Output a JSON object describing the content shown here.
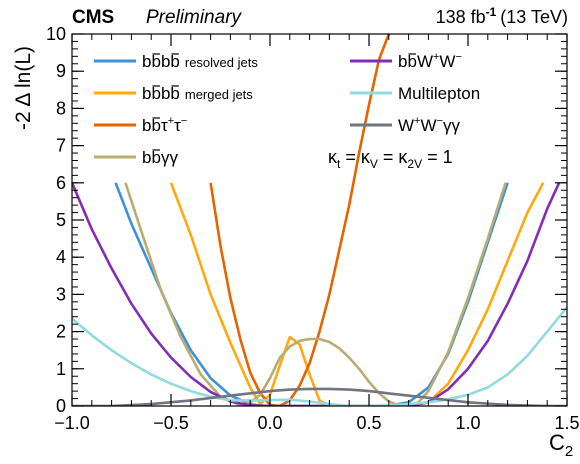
{
  "header": {
    "experiment": "CMS",
    "status": "Preliminary",
    "lumi_value": "138 fb",
    "lumi_exp": "-1",
    "energy": "(13 TeV)"
  },
  "axes": {
    "xlabel_main": "C",
    "xlabel_sub": "2",
    "ylabel": "-2 Δ ln(L)"
  },
  "annotation": {
    "kappa": "κ",
    "t": "t",
    "v": "V",
    "twov": "2V",
    "eq": " = ",
    "one": " = 1"
  },
  "legend": {
    "resolved_suffix": "resolved jets",
    "merged_suffix": "merged jets",
    "multilepton": "Multilepton"
  },
  "chart_data": {
    "type": "line",
    "xlim": [
      -1.0,
      1.5
    ],
    "ylim": [
      0,
      10
    ],
    "x_ticks": [
      -1.0,
      -0.5,
      0.0,
      0.5,
      1.0,
      1.5
    ],
    "x_tick_labels": [
      "−1.0",
      "−0.5",
      "0.0",
      "0.5",
      "1.0",
      "1.5"
    ],
    "y_ticks": [
      0,
      1,
      2,
      3,
      4,
      5,
      6,
      7,
      8,
      9,
      10
    ],
    "y_tick_labels": [
      "0",
      "1",
      "2",
      "3",
      "4",
      "5",
      "6",
      "7",
      "8",
      "9",
      "10"
    ],
    "grid": false,
    "legend_position": "top",
    "series": [
      {
        "color": "#3f90da",
        "x": [
          -0.78,
          -0.7,
          -0.6,
          -0.5,
          -0.4,
          -0.3,
          -0.2,
          -0.1,
          -0.05,
          0.0,
          0.05,
          0.1,
          0.2,
          0.3,
          0.4,
          0.5,
          0.6,
          0.7,
          0.8,
          0.9,
          1.0,
          1.1,
          1.2
        ],
        "y": [
          6.0,
          4.9,
          3.7,
          2.5,
          1.5,
          0.75,
          0.28,
          0.05,
          0.01,
          0.0,
          0.0,
          0.0,
          0.0,
          0.0,
          0.0,
          0.0,
          0.01,
          0.1,
          0.5,
          1.4,
          2.8,
          4.4,
          6.0
        ]
      },
      {
        "color": "#ffa90e",
        "x": [
          -0.5,
          -0.4,
          -0.3,
          -0.2,
          -0.1,
          -0.05,
          0.0,
          0.05,
          0.1,
          0.15,
          0.2,
          0.25,
          0.3,
          0.35,
          0.4,
          0.45,
          0.5,
          0.55,
          0.6,
          0.7,
          0.8,
          0.9,
          1.0,
          1.1,
          1.2,
          1.3,
          1.38
        ],
        "y": [
          6.0,
          4.6,
          3.0,
          1.7,
          0.5,
          0.05,
          0.3,
          1.1,
          1.85,
          1.65,
          0.85,
          0.15,
          0.0,
          0.0,
          0.0,
          0.0,
          0.0,
          0.0,
          0.0,
          0.0,
          0.1,
          0.6,
          1.5,
          2.6,
          3.9,
          5.2,
          6.0
        ]
      },
      {
        "color": "#e76300",
        "x": [
          -0.3,
          -0.25,
          -0.2,
          -0.15,
          -0.1,
          -0.05,
          0.0,
          0.05,
          0.1,
          0.15,
          0.2,
          0.25,
          0.3,
          0.35,
          0.4,
          0.45,
          0.5,
          0.55,
          0.6
        ],
        "y": [
          6.0,
          4.3,
          2.9,
          1.8,
          0.9,
          0.35,
          0.03,
          0.0,
          0.15,
          0.55,
          1.15,
          2.0,
          3.0,
          4.2,
          5.4,
          6.8,
          8.1,
          9.3,
          10.0
        ]
      },
      {
        "color": "#b9ac70",
        "x": [
          -0.73,
          -0.65,
          -0.55,
          -0.45,
          -0.35,
          -0.25,
          -0.15,
          -0.1,
          -0.05,
          0.0,
          0.05,
          0.1,
          0.15,
          0.2,
          0.25,
          0.3,
          0.35,
          0.4,
          0.45,
          0.5,
          0.55,
          0.6,
          0.65,
          0.7,
          0.75,
          0.8,
          0.9,
          1.0,
          1.1,
          1.19
        ],
        "y": [
          6.0,
          4.7,
          3.1,
          1.85,
          0.85,
          0.25,
          0.02,
          0.1,
          0.3,
          0.75,
          1.3,
          1.6,
          1.75,
          1.8,
          1.8,
          1.72,
          1.55,
          1.3,
          1.0,
          0.65,
          0.35,
          0.12,
          0.02,
          0.0,
          0.1,
          0.4,
          1.45,
          2.9,
          4.5,
          6.0
        ]
      },
      {
        "color": "#832db6",
        "x": [
          -1.0,
          -0.9,
          -0.8,
          -0.7,
          -0.6,
          -0.5,
          -0.4,
          -0.3,
          -0.2,
          -0.1,
          0.0,
          0.1,
          0.2,
          0.3,
          0.4,
          0.5,
          0.6,
          0.7,
          0.8,
          0.9,
          1.0,
          1.1,
          1.2,
          1.3,
          1.4,
          1.46
        ],
        "y": [
          6.0,
          4.75,
          3.7,
          2.75,
          1.95,
          1.3,
          0.78,
          0.38,
          0.12,
          0.02,
          0.0,
          0.0,
          0.0,
          0.0,
          0.0,
          0.0,
          0.0,
          0.0,
          0.1,
          0.45,
          1.0,
          1.75,
          2.75,
          3.9,
          5.3,
          6.0
        ]
      },
      {
        "color": "#92dadd",
        "x": [
          -1.0,
          -0.9,
          -0.8,
          -0.7,
          -0.6,
          -0.5,
          -0.4,
          -0.3,
          -0.2,
          -0.1,
          0.0,
          0.1,
          0.2,
          0.3,
          0.4,
          0.5,
          0.6,
          0.7,
          0.8,
          0.9,
          1.0,
          1.1,
          1.2,
          1.3,
          1.4,
          1.5
        ],
        "y": [
          2.35,
          1.9,
          1.5,
          1.15,
          0.85,
          0.6,
          0.4,
          0.25,
          0.15,
          0.15,
          0.16,
          0.17,
          0.12,
          0.05,
          0.0,
          0.0,
          0.02,
          0.05,
          0.1,
          0.18,
          0.3,
          0.5,
          0.85,
          1.35,
          2.0,
          2.65
        ]
      },
      {
        "color": "#717581",
        "x": [
          -1.0,
          -0.8,
          -0.6,
          -0.4,
          -0.2,
          0.0,
          0.1,
          0.2,
          0.3,
          0.4,
          0.5,
          0.6,
          0.8,
          1.0,
          1.2,
          1.4,
          1.5
        ],
        "y": [
          0.0,
          0.0,
          0.05,
          0.15,
          0.28,
          0.4,
          0.44,
          0.46,
          0.46,
          0.44,
          0.4,
          0.34,
          0.22,
          0.1,
          0.03,
          0.0,
          0.0
        ]
      }
    ]
  }
}
